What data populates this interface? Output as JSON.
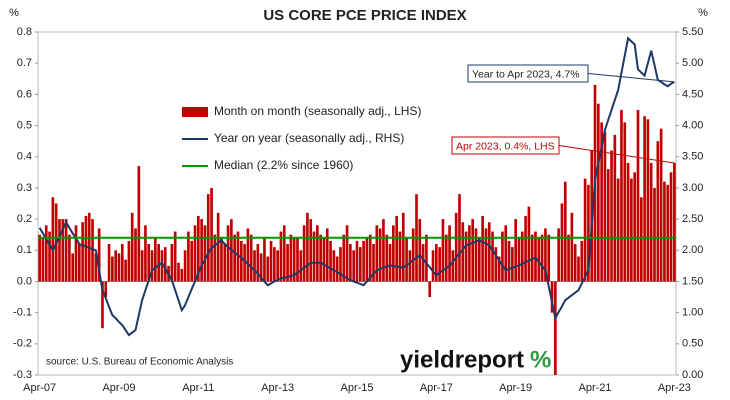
{
  "chart_data": {
    "type": "bar",
    "title": "US CORE PCE PRICE INDEX",
    "y_unit": "%",
    "y2_unit": "%",
    "source": "source: U.S. Bureau of Economic Analysis",
    "logo": "yieldreport",
    "logo_symbol": "%",
    "annotations": [
      "Year to Apr 2023, 4.7%",
      "Apr 2023, 0.4%, LHS"
    ],
    "categories": [
      "Apr-07",
      null,
      null,
      null,
      null,
      null,
      null,
      null,
      null,
      null,
      null,
      null,
      null,
      null,
      null,
      null,
      null,
      null,
      null,
      null,
      null,
      null,
      null,
      null,
      "Apr-09",
      null,
      null,
      null,
      null,
      null,
      null,
      null,
      null,
      null,
      null,
      null,
      null,
      null,
      null,
      null,
      null,
      null,
      null,
      null,
      null,
      null,
      null,
      null,
      "Apr-11",
      null,
      null,
      null,
      null,
      null,
      null,
      null,
      null,
      null,
      null,
      null,
      null,
      null,
      null,
      null,
      null,
      null,
      null,
      null,
      null,
      null,
      null,
      null,
      "Apr-13",
      null,
      null,
      null,
      null,
      null,
      null,
      null,
      null,
      null,
      null,
      null,
      null,
      null,
      null,
      null,
      null,
      null,
      null,
      null,
      null,
      null,
      null,
      null,
      "Apr-15",
      null,
      null,
      null,
      null,
      null,
      null,
      null,
      null,
      null,
      null,
      null,
      null,
      null,
      null,
      null,
      null,
      null,
      null,
      null,
      null,
      null,
      null,
      null,
      "Apr-17",
      null,
      null,
      null,
      null,
      null,
      null,
      null,
      null,
      null,
      null,
      null,
      null,
      null,
      null,
      null,
      null,
      null,
      null,
      null,
      null,
      null,
      null,
      null,
      "Apr-19",
      null,
      null,
      null,
      null,
      null,
      null,
      null,
      null,
      null,
      null,
      null,
      null,
      null,
      null,
      null,
      null,
      null,
      null,
      null,
      null,
      null,
      null,
      null,
      "Apr-21",
      null,
      null,
      null,
      null,
      null,
      null,
      null,
      null,
      null,
      null,
      null,
      null,
      null,
      null,
      null,
      null,
      null,
      null,
      null,
      null,
      null,
      null,
      null,
      "Apr-23"
    ],
    "series": [
      {
        "name": "Month on month (seasonally adj., LHS)",
        "color": "#c00000",
        "type": "bar",
        "values": [
          0.15,
          0.14,
          0.18,
          0.16,
          0.27,
          0.25,
          0.2,
          0.2,
          0.2,
          0.15,
          0.09,
          0.18,
          0.12,
          0.19,
          0.21,
          0.22,
          0.2,
          0.09,
          0.17,
          -0.15,
          -0.05,
          0.12,
          0.08,
          0.1,
          0.09,
          0.12,
          0.07,
          0.13,
          0.22,
          0.17,
          0.37,
          0.1,
          0.18,
          0.12,
          0.1,
          0.14,
          0.12,
          0.1,
          0.11,
          0.05,
          0.12,
          0.16,
          0.06,
          0.04,
          0.1,
          0.16,
          0.13,
          0.18,
          0.21,
          0.2,
          0.18,
          0.28,
          0.3,
          0.15,
          0.22,
          0.14,
          0.12,
          0.18,
          0.2,
          0.15,
          0.16,
          0.13,
          0.12,
          0.17,
          0.15,
          0.1,
          0.12,
          0.09,
          0.14,
          0.08,
          0.13,
          0.11,
          0.1,
          0.16,
          0.18,
          0.12,
          0.15,
          0.14,
          0.14,
          0.1,
          0.18,
          0.22,
          0.2,
          0.16,
          0.18,
          0.15,
          0.14,
          0.17,
          0.13,
          0.1,
          0.08,
          0.11,
          0.15,
          0.18,
          0.12,
          0.1,
          0.13,
          0.11,
          0.13,
          0.14,
          0.15,
          0.12,
          0.18,
          0.17,
          0.2,
          0.15,
          0.12,
          0.18,
          0.21,
          0.16,
          0.22,
          0.14,
          0.1,
          0.17,
          0.28,
          0.2,
          0.12,
          0.15,
          -0.05,
          0.1,
          0.12,
          0.11,
          0.2,
          0.15,
          0.18,
          0.1,
          0.22,
          0.28,
          0.19,
          0.16,
          0.18,
          0.2,
          0.17,
          0.14,
          0.21,
          0.17,
          0.19,
          0.16,
          0.11,
          0.08,
          0.16,
          0.18,
          0.13,
          0.11,
          0.2,
          0.14,
          0.16,
          0.21,
          0.24,
          0.15,
          0.16,
          0.14,
          0.15,
          0.17,
          0.15,
          -0.1,
          -0.3,
          0.17,
          0.25,
          0.32,
          0.15,
          0.22,
          0.12,
          0.08,
          0.13,
          0.33,
          0.31,
          0.42,
          0.63,
          0.57,
          0.51,
          0.48,
          0.36,
          0.42,
          0.47,
          0.33,
          0.55,
          0.51,
          0.38,
          0.33,
          0.35,
          0.55,
          0.27,
          0.53,
          0.52,
          0.38,
          0.3,
          0.45,
          0.49,
          0.32,
          0.31,
          0.35,
          0.38
        ]
      },
      {
        "name": "Year on year (seasonally adj., RHS)",
        "color": "#1f3864",
        "type": "line",
        "axis": "y2",
        "values": [
          2.36,
          2.27,
          2.18,
          2.09,
          2.0,
          2.11,
          2.22,
          2.34,
          2.45,
          2.36,
          2.27,
          2.19,
          2.1,
          2.08,
          2.06,
          2.04,
          2.02,
          2.0,
          1.68,
          1.36,
          1.23,
          1.09,
          0.96,
          0.91,
          0.85,
          0.8,
          0.72,
          0.64,
          0.68,
          0.72,
          0.96,
          1.2,
          1.36,
          1.52,
          1.68,
          1.72,
          1.76,
          1.8,
          1.71,
          1.61,
          1.52,
          1.36,
          1.2,
          1.04,
          1.12,
          1.25,
          1.38,
          1.5,
          1.63,
          1.76,
          1.85,
          1.95,
          2.04,
          2.08,
          2.12,
          2.16,
          2.1,
          2.05,
          2.01,
          1.96,
          1.92,
          1.88,
          1.83,
          1.78,
          1.73,
          1.68,
          1.62,
          1.56,
          1.5,
          1.44,
          1.47,
          1.5,
          1.52,
          1.55,
          1.56,
          1.57,
          1.59,
          1.6,
          1.64,
          1.68,
          1.72,
          1.76,
          1.8,
          1.8,
          1.8,
          1.8,
          1.77,
          1.74,
          1.71,
          1.68,
          1.65,
          1.62,
          1.58,
          1.55,
          1.52,
          1.5,
          1.48,
          1.46,
          1.44,
          1.5,
          1.56,
          1.62,
          1.68,
          1.7,
          1.72,
          1.74,
          1.76,
          1.75,
          1.74,
          1.73,
          1.72,
          1.76,
          1.8,
          1.84,
          1.88,
          1.92,
          1.86,
          1.79,
          1.73,
          1.66,
          1.6,
          1.64,
          1.68,
          1.71,
          1.75,
          1.82,
          1.88,
          1.95,
          2.01,
          2.08,
          2.1,
          2.12,
          2.14,
          2.16,
          2.13,
          2.11,
          2.08,
          2.0,
          1.92,
          1.84,
          1.76,
          1.68,
          1.7,
          1.72,
          1.74,
          1.76,
          1.78,
          1.81,
          1.83,
          1.86,
          1.88,
          1.81,
          1.75,
          1.68,
          1.42,
          1.17,
          0.91,
          1.01,
          1.1,
          1.2,
          1.24,
          1.28,
          1.32,
          1.36,
          1.47,
          1.57,
          1.68,
          2.4,
          3.12,
          3.39,
          3.66,
          3.93,
          4.09,
          4.25,
          4.41,
          4.57,
          4.85,
          5.12,
          5.4,
          5.35,
          5.3,
          4.9,
          4.85,
          4.8,
          5.0,
          5.2,
          4.97,
          4.73,
          4.7,
          4.66,
          4.63,
          4.67,
          4.7
        ]
      },
      {
        "name": "Median (2.2% since 1960)",
        "color": "#009900",
        "type": "hline",
        "axis": "y2",
        "value": 2.2
      }
    ],
    "ylim": [
      -0.3,
      0.8
    ],
    "yticks": [
      -0.3,
      -0.2,
      -0.1,
      {
        "value": 0,
        "label": "0.0"
      },
      0.1,
      0.2,
      0.3,
      0.4,
      0.5,
      0.6,
      0.7,
      0.8
    ],
    "y2lim": [
      0,
      5.5
    ],
    "y2ticks": [
      {
        "value": 0,
        "label": "0.00"
      },
      {
        "value": 0.5,
        "label": "0.50"
      },
      {
        "value": 1,
        "label": "1.00"
      },
      {
        "value": 1.5,
        "label": "1.50"
      },
      {
        "value": 2,
        "label": "2.00"
      },
      {
        "value": 2.5,
        "label": "2.50"
      },
      {
        "value": 3,
        "label": "3.00"
      },
      {
        "value": 3.5,
        "label": "3.50"
      },
      {
        "value": 4,
        "label": "4.00"
      },
      {
        "value": 4.5,
        "label": "4.50"
      },
      {
        "value": 5,
        "label": "5.00"
      },
      {
        "value": 5.5,
        "label": "5.50"
      }
    ],
    "grid": false,
    "legend": "upper-left"
  }
}
